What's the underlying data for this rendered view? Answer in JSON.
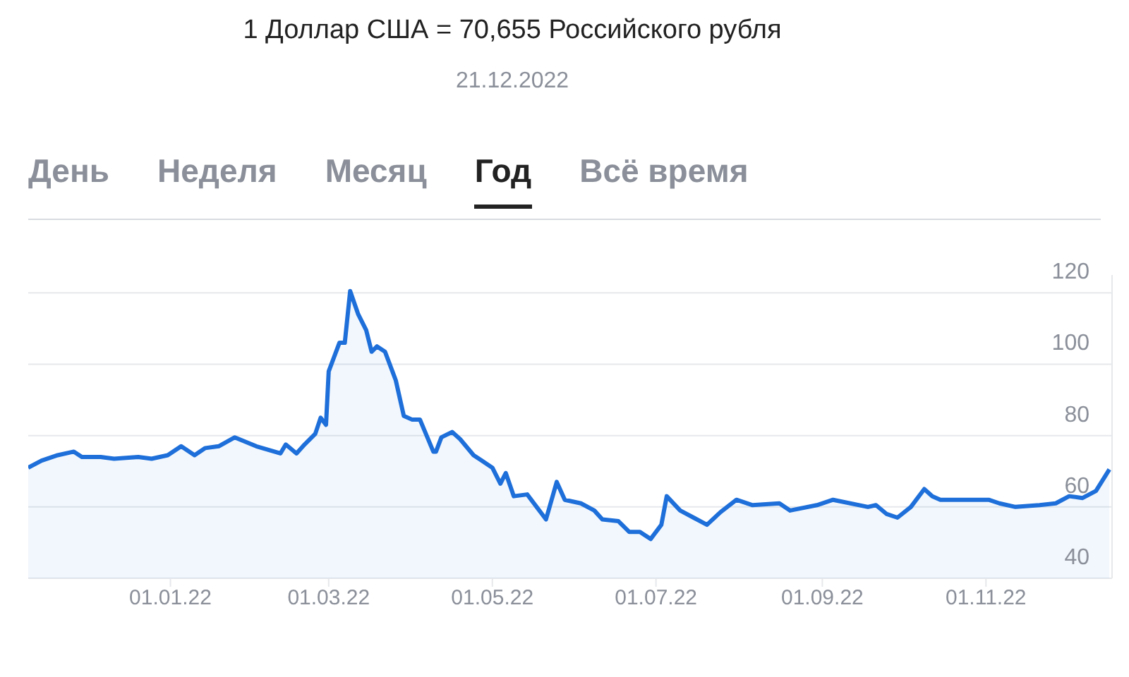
{
  "chart_data": {
    "type": "area",
    "title": "1 Доллар США = 70,655 Российского рубля",
    "subtitle": "21.12.2022",
    "annotations": [
      "День",
      "Неделя",
      "Месяц",
      "Год",
      "Всё время"
    ],
    "x": [
      "2021-11-09",
      "2021-11-14",
      "2021-11-20",
      "2021-11-26",
      "2021-11-29",
      "2021-12-06",
      "2021-12-11",
      "2021-12-20",
      "2021-12-25",
      "2021-12-31",
      "2022-01-05",
      "2022-01-10",
      "2022-01-14",
      "2022-01-19",
      "2022-01-25",
      "2022-02-02",
      "2022-02-11",
      "2022-02-13",
      "2022-02-17",
      "2022-02-20",
      "2022-02-24",
      "2022-02-26",
      "2022-02-28",
      "2022-03-01",
      "2022-03-05",
      "2022-03-07",
      "2022-03-09",
      "2022-03-12",
      "2022-03-15",
      "2022-03-17",
      "2022-03-19",
      "2022-03-22",
      "2022-03-25",
      "2022-03-26",
      "2022-03-29",
      "2022-04-01",
      "2022-04-04",
      "2022-04-09",
      "2022-04-10",
      "2022-04-12",
      "2022-04-16",
      "2022-04-19",
      "2022-04-24",
      "2022-04-27",
      "2022-05-01",
      "2022-05-04",
      "2022-05-06",
      "2022-05-09",
      "2022-05-14",
      "2022-05-21",
      "2022-05-25",
      "2022-05-28",
      "2022-06-03",
      "2022-06-08",
      "2022-06-11",
      "2022-06-17",
      "2022-06-21",
      "2022-06-25",
      "2022-06-29",
      "2022-07-03",
      "2022-07-05",
      "2022-07-10",
      "2022-07-15",
      "2022-07-20",
      "2022-07-25",
      "2022-07-31",
      "2022-08-06",
      "2022-08-16",
      "2022-08-20",
      "2022-08-30",
      "2022-09-05",
      "2022-09-18",
      "2022-09-21",
      "2022-09-25",
      "2022-09-29",
      "2022-10-04",
      "2022-10-09",
      "2022-10-12",
      "2022-10-15",
      "2022-10-27",
      "2022-11-02",
      "2022-11-06",
      "2022-11-12",
      "2022-11-21",
      "2022-11-27",
      "2022-12-02",
      "2022-12-07",
      "2022-12-12",
      "2022-12-17"
    ],
    "series": [
      {
        "color": "#1e6fd9",
        "values": [
          71,
          73,
          74.5,
          75.5,
          74,
          74,
          73.5,
          74,
          73.5,
          74.5,
          77,
          74.5,
          76.5,
          77,
          79.5,
          77,
          75,
          77.5,
          75,
          77.5,
          80.5,
          85,
          83,
          98,
          106,
          106,
          120.5,
          114,
          109.5,
          103.5,
          105,
          103.5,
          97.5,
          95.5,
          85.5,
          84.5,
          84.5,
          75.5,
          75.5,
          79.5,
          81,
          79,
          74.5,
          73,
          71,
          66.5,
          69.5,
          63,
          63.5,
          56.5,
          67,
          62,
          61,
          59,
          56.5,
          56,
          53,
          53,
          51,
          55,
          63,
          59,
          57,
          55,
          58.5,
          62,
          60.5,
          61,
          59,
          60.5,
          62,
          60,
          60.5,
          58,
          57,
          60,
          65,
          63,
          62,
          62,
          62,
          61,
          60,
          60.5,
          61,
          63,
          62.5,
          64.5,
          70.5
        ]
      }
    ],
    "xlim": [
      "2021-11-09",
      "2022-12-18"
    ],
    "xticks": [
      {
        "value": "2022-01-01",
        "label": "01.01.22"
      },
      {
        "value": "2022-03-01",
        "label": "01.03.22"
      },
      {
        "value": "2022-05-01",
        "label": "01.05.22"
      },
      {
        "value": "2022-07-01",
        "label": "01.07.22"
      },
      {
        "value": "2022-09-01",
        "label": "01.09.22"
      },
      {
        "value": "2022-11-01",
        "label": "01.11.22"
      }
    ],
    "ylim": [
      40,
      125
    ],
    "yticks": [
      40,
      60,
      80,
      100,
      120
    ],
    "grid": "y"
  }
}
